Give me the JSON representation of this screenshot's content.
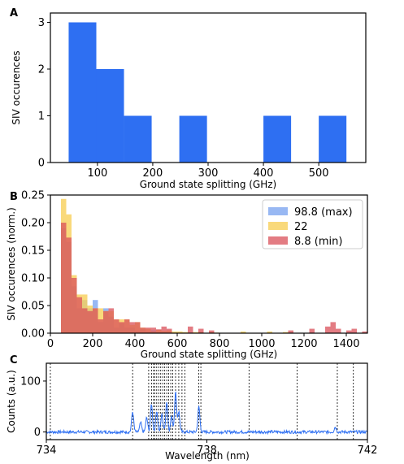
{
  "chart_data": [
    {
      "panel": "A",
      "type": "bar",
      "xlabel": "Ground state splitting (GHz)",
      "ylabel": "SIV occurences",
      "xlim": [
        15,
        585
      ],
      "ylim": [
        0,
        3.2
      ],
      "xticks": [
        100,
        200,
        300,
        400,
        500
      ],
      "yticks": [
        0,
        1,
        2,
        3
      ],
      "bar_color": "#2e6ff2",
      "bins": [
        {
          "x0": 48,
          "x1": 98,
          "value": 3
        },
        {
          "x0": 98,
          "x1": 148,
          "value": 2
        },
        {
          "x0": 148,
          "x1": 198,
          "value": 1
        },
        {
          "x0": 248,
          "x1": 298,
          "value": 1
        },
        {
          "x0": 400,
          "x1": 450,
          "value": 1
        },
        {
          "x0": 500,
          "x1": 550,
          "value": 1
        }
      ]
    },
    {
      "panel": "B",
      "type": "bar",
      "xlabel": "Ground state splitting (GHz)",
      "ylabel": "SIV occurences (norm.)",
      "xlim": [
        0,
        1500
      ],
      "ylim": [
        0,
        0.25
      ],
      "xticks": [
        0,
        200,
        400,
        600,
        800,
        1000,
        1200,
        1400
      ],
      "yticks": [
        0.0,
        0.05,
        0.1,
        0.15,
        0.2,
        0.25
      ],
      "ytick_labels": [
        "0.00",
        "0.05",
        "0.10",
        "0.15",
        "0.20",
        "0.25"
      ],
      "legend_position": "top-right",
      "bin_start": 50,
      "bin_width": 25,
      "series": [
        {
          "name": "98.8 (max)",
          "color": "#7ea6f0",
          "values": [
            0.19,
            0.165,
            0.085,
            0.045,
            0.06,
            0.045,
            0.06,
            0.02,
            0.045,
            0.03,
            0.01,
            0.018,
            0.01,
            0.01,
            0.005,
            0.008,
            0.003,
            0.005,
            0.002,
            0.002,
            0.001,
            0.001,
            0,
            0.001,
            0,
            0,
            0,
            0,
            0,
            0,
            0,
            0,
            0,
            0,
            0,
            0,
            0,
            0,
            0,
            0,
            0,
            0,
            0,
            0,
            0,
            0,
            0,
            0,
            0,
            0,
            0,
            0,
            0,
            0,
            0,
            0,
            0,
            0
          ]
        },
        {
          "name": "22",
          "color": "#f7cf5a",
          "values": [
            0.243,
            0.215,
            0.105,
            0.07,
            0.07,
            0.05,
            0.045,
            0.045,
            0.04,
            0.04,
            0.025,
            0.025,
            0.025,
            0.015,
            0.02,
            0.01,
            0.008,
            0.003,
            0.006,
            0.004,
            0.005,
            0.003,
            0.003,
            0.002,
            0,
            0.002,
            0.002,
            0,
            0.002,
            0.001,
            0,
            0,
            0,
            0,
            0.003,
            0,
            0,
            0,
            0,
            0.003,
            0,
            0,
            0.002,
            0,
            0,
            0,
            0,
            0,
            0,
            0,
            0,
            0,
            0,
            0,
            0,
            0,
            0,
            0
          ]
        },
        {
          "name": "8.8 (min)",
          "color": "#d9505a",
          "values": [
            0.2,
            0.173,
            0.1,
            0.065,
            0.045,
            0.04,
            0.045,
            0.025,
            0.04,
            0.045,
            0.025,
            0.02,
            0.025,
            0.02,
            0.02,
            0.01,
            0.01,
            0.01,
            0.007,
            0.012,
            0.008,
            0,
            0,
            0,
            0.012,
            0,
            0.008,
            0,
            0.005,
            0,
            0,
            0,
            0,
            0,
            0,
            0,
            0,
            0,
            0,
            0,
            0,
            0,
            0,
            0.005,
            0,
            0,
            0,
            0.008,
            0,
            0,
            0.012,
            0.02,
            0.008,
            0,
            0.005,
            0.008,
            0,
            0.003
          ]
        }
      ]
    },
    {
      "panel": "C",
      "type": "line",
      "xlabel": "Wavelength (nm)",
      "ylabel": "Counts (a.u.)",
      "xlim": [
        734,
        742
      ],
      "ylim": [
        -15,
        135
      ],
      "xticks": [
        734,
        738,
        742
      ],
      "yticks": [
        0,
        100
      ],
      "line_color": "#2e6ff2",
      "baseline": 0,
      "peaks": [
        {
          "x": 736.15,
          "y": 40
        },
        {
          "x": 736.35,
          "y": 18
        },
        {
          "x": 736.5,
          "y": 28
        },
        {
          "x": 736.62,
          "y": 55
        },
        {
          "x": 736.75,
          "y": 42
        },
        {
          "x": 736.88,
          "y": 35
        },
        {
          "x": 737.0,
          "y": 60
        },
        {
          "x": 737.12,
          "y": 30
        },
        {
          "x": 737.22,
          "y": 78
        },
        {
          "x": 737.3,
          "y": 40
        },
        {
          "x": 737.8,
          "y": 50
        },
        {
          "x": 741.2,
          "y": 10
        }
      ],
      "vlines": [
        734.1,
        736.15,
        736.55,
        736.62,
        736.67,
        736.7,
        736.75,
        736.8,
        736.85,
        736.9,
        736.95,
        737.0,
        737.05,
        737.1,
        737.15,
        737.22,
        737.3,
        737.38,
        737.45,
        737.8,
        737.85,
        739.05,
        740.25,
        741.25,
        741.65
      ]
    }
  ],
  "panel_labels": {
    "a": "A",
    "b": "B",
    "c": "C"
  }
}
